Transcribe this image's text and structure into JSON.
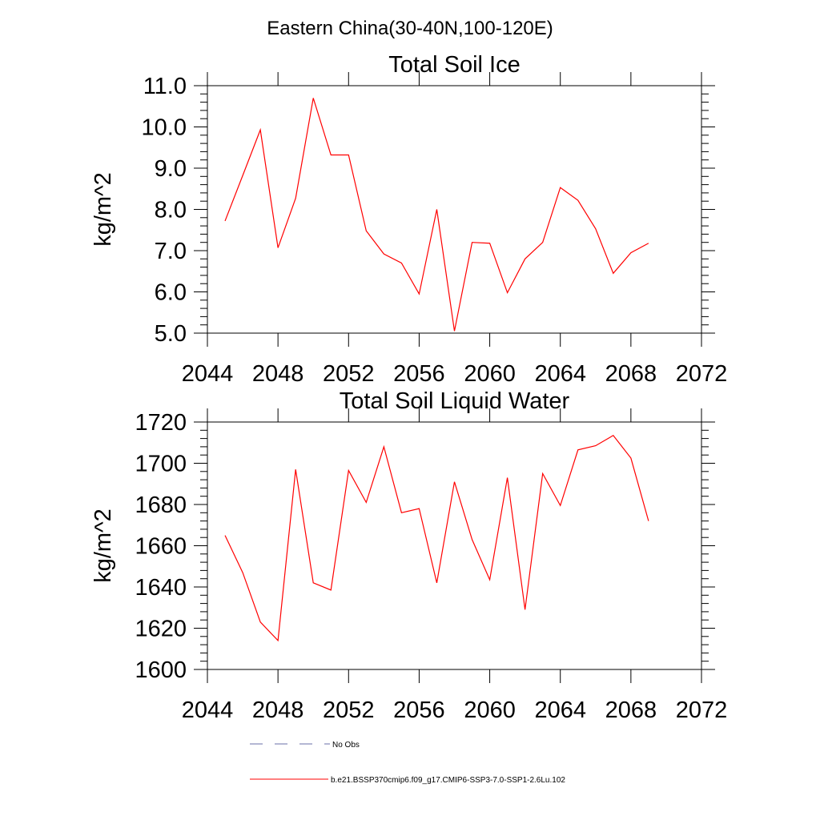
{
  "figure_title": "Eastern China(30-40N,100-120E)",
  "chart_data": [
    {
      "type": "line",
      "title": "Total Soil Ice",
      "ylabel": "kg/m^2",
      "xlabel": "",
      "xlim": [
        2044,
        2072
      ],
      "ylim": [
        5.0,
        11.0
      ],
      "x_ticks": [
        2044,
        2048,
        2052,
        2056,
        2060,
        2064,
        2068,
        2072
      ],
      "x_tick_labels": [
        "2044",
        "2048",
        "2052",
        "2056",
        "2060",
        "2064",
        "2068",
        "2072"
      ],
      "y_ticks": [
        5.0,
        6.0,
        7.0,
        8.0,
        9.0,
        10.0,
        11.0
      ],
      "y_tick_labels": [
        "5.0",
        "6.0",
        "7.0",
        "8.0",
        "9.0",
        "10.0",
        "11.0"
      ],
      "grid": false,
      "series": [
        {
          "name": "b.e21.BSSP370cmip6.f09_g17.CMIP6-SSP3-7.0-SSP1-2.6Lu.102",
          "color": "#ff0000",
          "x": [
            2045,
            2046,
            2047,
            2048,
            2049,
            2050,
            2051,
            2052,
            2053,
            2054,
            2055,
            2056,
            2057,
            2058,
            2059,
            2060,
            2061,
            2062,
            2063,
            2064,
            2065,
            2066,
            2067,
            2068,
            2069
          ],
          "y": [
            7.72,
            8.82,
            9.93,
            7.07,
            8.27,
            10.7,
            9.32,
            9.32,
            7.48,
            6.92,
            6.7,
            5.95,
            8.0,
            5.05,
            7.2,
            7.18,
            5.98,
            6.8,
            7.2,
            8.53,
            8.22,
            7.53,
            6.45,
            6.95,
            7.18
          ]
        }
      ]
    },
    {
      "type": "line",
      "title": "Total Soil Liquid Water",
      "ylabel": "kg/m^2",
      "xlabel": "",
      "xlim": [
        2044,
        2072
      ],
      "ylim": [
        1600,
        1720
      ],
      "x_ticks": [
        2044,
        2048,
        2052,
        2056,
        2060,
        2064,
        2068,
        2072
      ],
      "x_tick_labels": [
        "2044",
        "2048",
        "2052",
        "2056",
        "2060",
        "2064",
        "2068",
        "2072"
      ],
      "y_ticks": [
        1600,
        1620,
        1640,
        1660,
        1680,
        1700,
        1720
      ],
      "y_tick_labels": [
        "1600",
        "1620",
        "1640",
        "1660",
        "1680",
        "1700",
        "1720"
      ],
      "grid": false,
      "series": [
        {
          "name": "b.e21.BSSP370cmip6.f09_g17.CMIP6-SSP3-7.0-SSP1-2.6Lu.102",
          "color": "#ff0000",
          "x": [
            2045,
            2046,
            2047,
            2048,
            2049,
            2050,
            2051,
            2052,
            2053,
            2054,
            2055,
            2056,
            2057,
            2058,
            2059,
            2060,
            2061,
            2062,
            2063,
            2064,
            2065,
            2066,
            2067,
            2068,
            2069
          ],
          "y": [
            1665,
            1647,
            1623,
            1614,
            1697,
            1642,
            1638.5,
            1696.5,
            1681,
            1708,
            1676,
            1678,
            1642,
            1691,
            1663,
            1643.5,
            1693,
            1629,
            1695,
            1679.5,
            1706.5,
            1708.5,
            1713.5,
            1702.5,
            1672
          ]
        }
      ]
    }
  ],
  "legend": [
    {
      "label": "No Obs",
      "color": "#6a6fa8",
      "style": "dashed"
    },
    {
      "label": "b.e21.BSSP370cmip6.f09_g17.CMIP6-SSP3-7.0-SSP1-2.6Lu.102",
      "color": "#ff0000",
      "style": "solid"
    }
  ],
  "legend_position": "bottom"
}
